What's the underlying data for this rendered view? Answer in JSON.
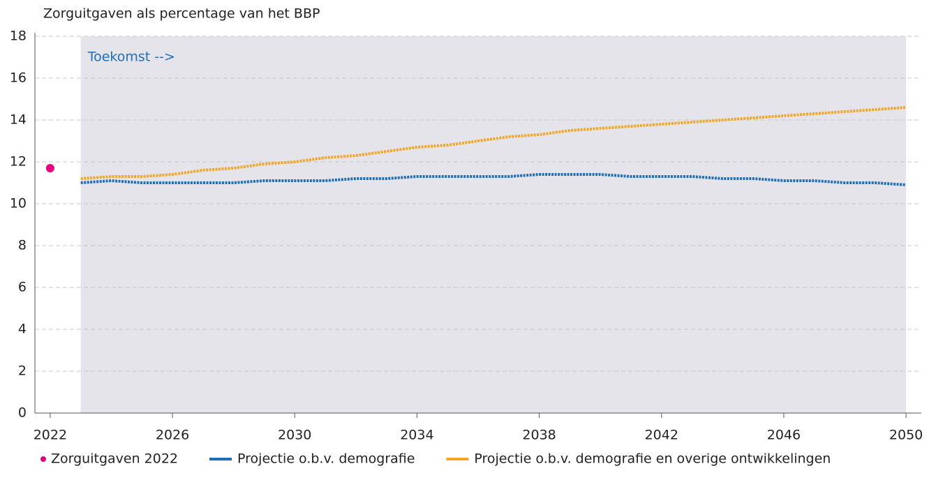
{
  "chart_data": {
    "type": "line",
    "title": "Zorguitgaven als percentage van het BBP",
    "annotation": "Toekomst -->",
    "shaded_region": [
      2023,
      2050
    ],
    "xlim": [
      2021.5,
      2050.5
    ],
    "xticks": [
      2022,
      2026,
      2030,
      2034,
      2038,
      2042,
      2046,
      2050
    ],
    "ylim": [
      0,
      18
    ],
    "yticks": [
      0,
      2,
      4,
      6,
      8,
      10,
      12,
      14,
      16,
      18
    ],
    "grid": true,
    "legend": "bottom",
    "series": [
      {
        "name": "Zorguitgaven 2022",
        "color": "#e5007d",
        "x": [
          2022
        ],
        "values": [
          11.7
        ]
      },
      {
        "name": "Projectie o.b.v. demografie",
        "color": "#1f6fb8",
        "x": [
          2023,
          2024,
          2025,
          2026,
          2027,
          2028,
          2029,
          2030,
          2031,
          2032,
          2033,
          2034,
          2035,
          2036,
          2037,
          2038,
          2039,
          2040,
          2041,
          2042,
          2043,
          2044,
          2045,
          2046,
          2047,
          2048,
          2049,
          2050
        ],
        "values": [
          11.0,
          11.1,
          11.0,
          11.0,
          11.0,
          11.0,
          11.1,
          11.1,
          11.1,
          11.2,
          11.2,
          11.3,
          11.3,
          11.3,
          11.3,
          11.4,
          11.4,
          11.4,
          11.3,
          11.3,
          11.3,
          11.2,
          11.2,
          11.1,
          11.1,
          11.0,
          11.0,
          10.9
        ]
      },
      {
        "name": "Projectie o.b.v. demografie en overige ontwikkelingen",
        "color": "#f5a623",
        "x": [
          2023,
          2024,
          2025,
          2026,
          2027,
          2028,
          2029,
          2030,
          2031,
          2032,
          2033,
          2034,
          2035,
          2036,
          2037,
          2038,
          2039,
          2040,
          2041,
          2042,
          2043,
          2044,
          2045,
          2046,
          2047,
          2048,
          2049,
          2050
        ],
        "values": [
          11.2,
          11.3,
          11.3,
          11.4,
          11.6,
          11.7,
          11.9,
          12.0,
          12.2,
          12.3,
          12.5,
          12.7,
          12.8,
          13.0,
          13.2,
          13.3,
          13.5,
          13.6,
          13.7,
          13.8,
          13.9,
          14.0,
          14.1,
          14.2,
          14.3,
          14.4,
          14.5,
          14.6
        ]
      }
    ]
  }
}
